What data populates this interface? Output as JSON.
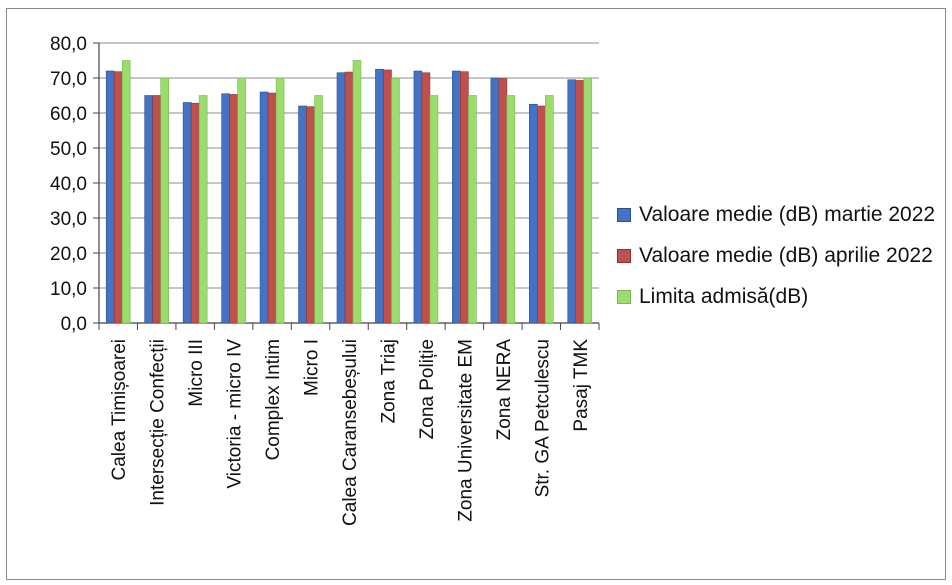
{
  "chart_data": {
    "type": "bar",
    "categories": [
      "Calea Timișoarei",
      "Intersecție Confecții",
      "Micro III",
      "Victoria - micro IV",
      "Complex Intim",
      "Micro I",
      "Calea Caransebeșului",
      "Zona Triaj",
      "Zona Poliție",
      "Zona Universitate EM",
      "Zona NERA",
      "Str. GA Petculescu",
      "Pasaj TMK"
    ],
    "series": [
      {
        "name": "Valoare medie (dB) martie 2022",
        "color": "#4472c4",
        "values": [
          72.0,
          65.0,
          63.0,
          65.5,
          66.0,
          62.0,
          71.5,
          72.5,
          72.0,
          72.0,
          70.0,
          62.5,
          69.5
        ]
      },
      {
        "name": "Valoare medie (dB) aprilie 2022",
        "color": "#c0504d",
        "values": [
          71.8,
          65.0,
          62.8,
          65.3,
          65.7,
          61.8,
          71.7,
          72.3,
          71.5,
          71.8,
          69.8,
          62.0,
          69.3
        ]
      },
      {
        "name": "Limita admisă(dB)",
        "color": "#9bdc6d",
        "values": [
          75,
          70,
          65,
          70,
          70,
          65,
          75,
          70,
          65,
          65,
          65,
          65,
          70
        ]
      }
    ],
    "yticks": [
      "0,0",
      "10,0",
      "20,0",
      "30,0",
      "40,0",
      "50,0",
      "60,0",
      "70,0",
      "80,0"
    ],
    "ylim": [
      0,
      80
    ],
    "grid": true,
    "legend_position": "right"
  },
  "legend": {
    "items": [
      {
        "label": "Valoare medie (dB) martie 2022",
        "color": "#4472c4"
      },
      {
        "label": "Valoare medie (dB) aprilie 2022",
        "color": "#c0504d"
      },
      {
        "label": "Limita admisă(dB)",
        "color": "#9bdc6d"
      }
    ]
  }
}
